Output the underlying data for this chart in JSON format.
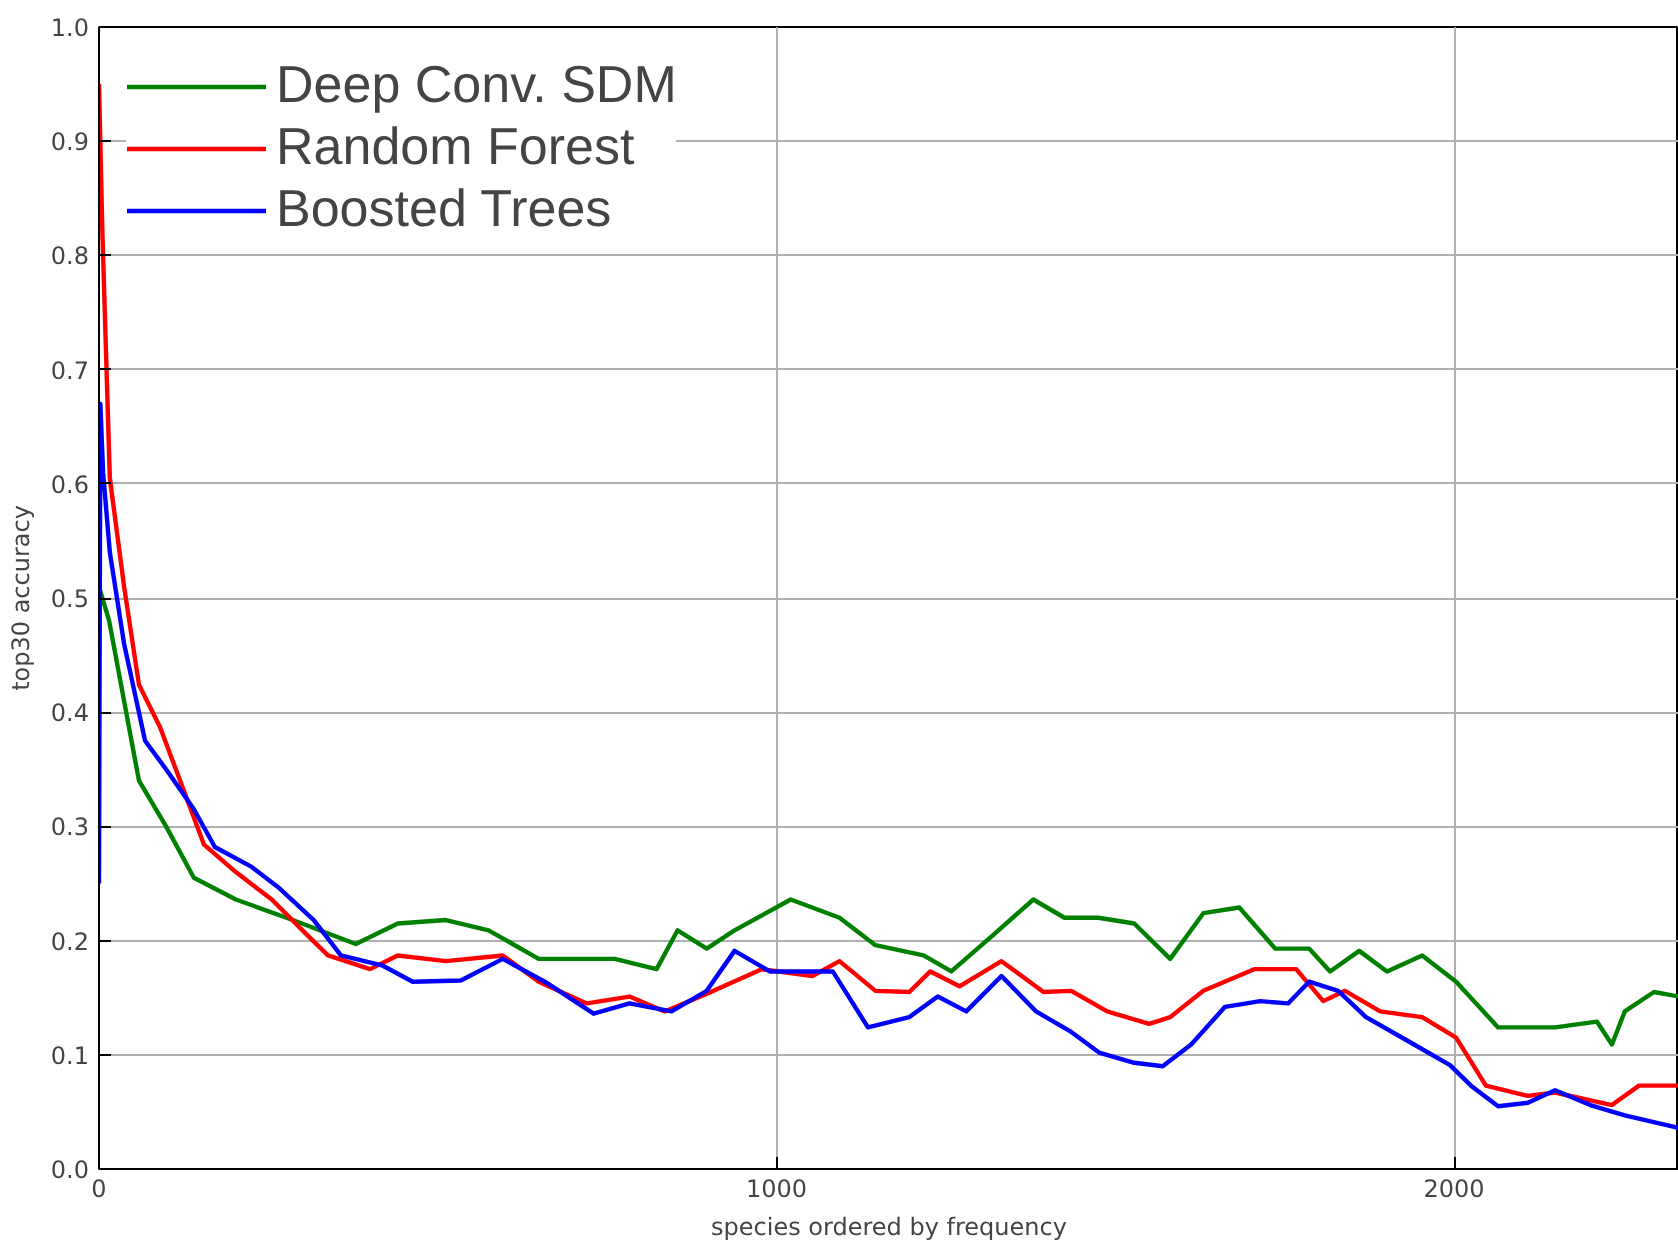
{
  "chart_data": {
    "type": "line",
    "xlabel": "species ordered by frequency",
    "ylabel": "top30 accuracy",
    "xlim": [
      0,
      2332
    ],
    "ylim": [
      0,
      1
    ],
    "xticks": [
      0,
      1000,
      2000
    ],
    "yticks": [
      {
        "value": 0,
        "label": "0.0"
      },
      0.1,
      0.2,
      0.3,
      0.4,
      0.5,
      0.6,
      0.7,
      0.8,
      0.9,
      {
        "value": 1,
        "label": "1.0"
      }
    ],
    "grid": true,
    "legend": "top left",
    "line_style": "solid",
    "marker": "none",
    "series": [
      {
        "name": "Deep Conv. SDM",
        "color": "#008000",
        "x": [
          0,
          15,
          37,
          59,
          99,
          140,
          202,
          286,
          379,
          441,
          512,
          575,
          649,
          761,
          823,
          854,
          897,
          938,
          1021,
          1093,
          1146,
          1217,
          1258,
          1320,
          1379,
          1425,
          1475,
          1528,
          1581,
          1630,
          1683,
          1736,
          1786,
          1817,
          1860,
          1901,
          1953,
          2003,
          2065,
          2149,
          2211,
          2233,
          2252,
          2295,
          2332
        ],
        "values": [
          0.51,
          0.48,
          0.41,
          0.34,
          0.3,
          0.255,
          0.236,
          0.218,
          0.197,
          0.215,
          0.218,
          0.209,
          0.184,
          0.184,
          0.175,
          0.209,
          0.193,
          0.209,
          0.236,
          0.22,
          0.196,
          0.187,
          0.173,
          0.205,
          0.236,
          0.22,
          0.22,
          0.215,
          0.184,
          0.224,
          0.229,
          0.193,
          0.193,
          0.173,
          0.191,
          0.173,
          0.187,
          0.164,
          0.124,
          0.124,
          0.129,
          0.109,
          0.138,
          0.155,
          0.151
        ]
      },
      {
        "name": "Random Forest",
        "color": "#ff0000",
        "x": [
          0,
          5,
          16,
          37,
          59,
          90,
          121,
          155,
          202,
          255,
          307,
          338,
          400,
          441,
          512,
          596,
          649,
          720,
          783,
          835,
          907,
          978,
          1053,
          1093,
          1146,
          1196,
          1227,
          1270,
          1332,
          1394,
          1435,
          1488,
          1550,
          1581,
          1630,
          1705,
          1767,
          1807,
          1839,
          1891,
          1953,
          2003,
          2047,
          2109,
          2149,
          2233,
          2273,
          2332
        ],
        "values": [
          0.95,
          0.82,
          0.605,
          0.51,
          0.424,
          0.387,
          0.338,
          0.284,
          0.26,
          0.236,
          0.205,
          0.187,
          0.175,
          0.187,
          0.182,
          0.187,
          0.164,
          0.145,
          0.151,
          0.138,
          0.156,
          0.175,
          0.169,
          0.182,
          0.156,
          0.155,
          0.173,
          0.16,
          0.182,
          0.155,
          0.156,
          0.138,
          0.127,
          0.133,
          0.156,
          0.175,
          0.175,
          0.147,
          0.156,
          0.138,
          0.133,
          0.115,
          0.073,
          0.064,
          0.067,
          0.056,
          0.073,
          0.073
        ]
      },
      {
        "name": "Boosted Trees",
        "color": "#0000ff",
        "x": [
          0,
          2,
          6,
          16,
          37,
          68,
          99,
          140,
          171,
          224,
          264,
          317,
          357,
          419,
          463,
          534,
          596,
          658,
          730,
          783,
          845,
          897,
          938,
          990,
          1083,
          1135,
          1196,
          1238,
          1280,
          1332,
          1383,
          1435,
          1476,
          1528,
          1570,
          1612,
          1662,
          1714,
          1755,
          1786,
          1829,
          1870,
          1941,
          1994,
          2025,
          2065,
          2109,
          2149,
          2201,
          2252,
          2332
        ],
        "values": [
          0.25,
          0.67,
          0.61,
          0.54,
          0.46,
          0.375,
          0.35,
          0.315,
          0.282,
          0.265,
          0.247,
          0.218,
          0.187,
          0.178,
          0.164,
          0.165,
          0.184,
          0.164,
          0.136,
          0.145,
          0.138,
          0.156,
          0.191,
          0.173,
          0.173,
          0.124,
          0.133,
          0.151,
          0.138,
          0.169,
          0.138,
          0.12,
          0.102,
          0.093,
          0.09,
          0.109,
          0.142,
          0.147,
          0.145,
          0.164,
          0.156,
          0.133,
          0.109,
          0.091,
          0.073,
          0.055,
          0.058,
          0.069,
          0.056,
          0.047,
          0.036
        ]
      }
    ]
  }
}
